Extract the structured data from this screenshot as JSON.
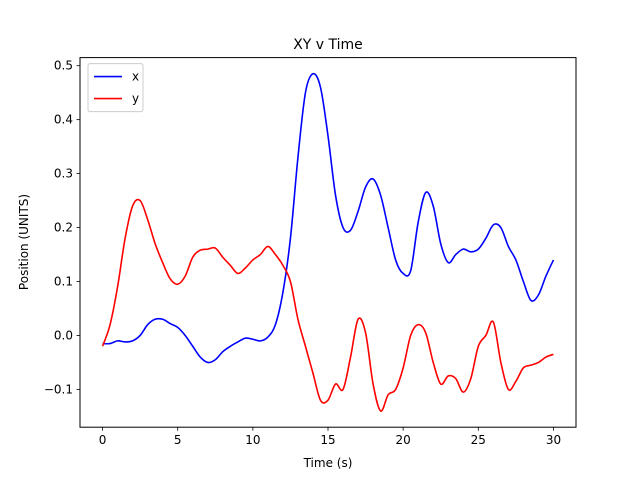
{
  "chart_data": {
    "type": "line",
    "title": "XY v Time",
    "xlabel": "Time (s)",
    "ylabel": "Position (UNITS)",
    "xlim": [
      -1.5,
      31.5
    ],
    "ylim": [
      -0.17,
      0.515
    ],
    "xticks": [
      0,
      5,
      10,
      15,
      20,
      25,
      30
    ],
    "xtick_labels": [
      "0",
      "5",
      "10",
      "15",
      "20",
      "25",
      "30"
    ],
    "yticks": [
      -0.1,
      0.0,
      0.1,
      0.2,
      0.3,
      0.4,
      0.5
    ],
    "ytick_labels": [
      "−0.1",
      "0.0",
      "0.1",
      "0.2",
      "0.3",
      "0.4",
      "0.5"
    ],
    "grid": false,
    "legend_position": "top-left",
    "series": [
      {
        "name": "x",
        "color": "#0000ff",
        "x": [
          0,
          0.5,
          1,
          1.5,
          2,
          2.5,
          3,
          3.5,
          4,
          4.5,
          5,
          5.5,
          6,
          6.5,
          7,
          7.5,
          8,
          8.5,
          9,
          9.5,
          10,
          10.5,
          11,
          11.5,
          12,
          12.5,
          13,
          13.5,
          14,
          14.5,
          15,
          15.5,
          16,
          16.5,
          17,
          17.5,
          18,
          18.5,
          19,
          19.5,
          20,
          20.5,
          21,
          21.5,
          22,
          22.5,
          23,
          23.5,
          24,
          24.5,
          25,
          25.5,
          26,
          26.5,
          27,
          27.5,
          28,
          28.5,
          29,
          29.5,
          30
        ],
        "values": [
          -0.015,
          -0.015,
          -0.01,
          -0.012,
          -0.01,
          0.0,
          0.02,
          0.03,
          0.03,
          0.022,
          0.015,
          0.0,
          -0.02,
          -0.04,
          -0.05,
          -0.045,
          -0.03,
          -0.02,
          -0.012,
          -0.005,
          -0.007,
          -0.01,
          -0.003,
          0.02,
          0.08,
          0.18,
          0.33,
          0.45,
          0.485,
          0.46,
          0.37,
          0.26,
          0.2,
          0.195,
          0.23,
          0.275,
          0.29,
          0.26,
          0.2,
          0.14,
          0.115,
          0.12,
          0.21,
          0.265,
          0.24,
          0.17,
          0.135,
          0.15,
          0.16,
          0.155,
          0.16,
          0.18,
          0.205,
          0.2,
          0.165,
          0.14,
          0.1,
          0.065,
          0.075,
          0.11,
          0.14
        ]
      },
      {
        "name": "y",
        "color": "#ff0000",
        "x": [
          0,
          0.5,
          1,
          1.5,
          2,
          2.5,
          3,
          3.5,
          4,
          4.5,
          5,
          5.5,
          6,
          6.5,
          7,
          7.5,
          8,
          8.5,
          9,
          9.5,
          10,
          10.5,
          11,
          11.5,
          12,
          12.5,
          13,
          13.5,
          14,
          14.5,
          15,
          15.5,
          16,
          16.5,
          17,
          17.5,
          18,
          18.5,
          19,
          19.5,
          20,
          20.5,
          21,
          21.5,
          22,
          22.5,
          23,
          23.5,
          24,
          24.5,
          25,
          25.5,
          26,
          26.5,
          27,
          27.5,
          28,
          28.5,
          29,
          29.5,
          30
        ],
        "values": [
          -0.02,
          0.02,
          0.09,
          0.18,
          0.24,
          0.25,
          0.215,
          0.17,
          0.135,
          0.105,
          0.095,
          0.11,
          0.145,
          0.158,
          0.16,
          0.162,
          0.145,
          0.13,
          0.115,
          0.125,
          0.14,
          0.15,
          0.165,
          0.15,
          0.13,
          0.1,
          0.03,
          -0.02,
          -0.07,
          -0.12,
          -0.12,
          -0.09,
          -0.1,
          -0.04,
          0.03,
          0.005,
          -0.09,
          -0.14,
          -0.11,
          -0.1,
          -0.06,
          0.0,
          0.02,
          0.005,
          -0.05,
          -0.09,
          -0.075,
          -0.08,
          -0.105,
          -0.08,
          -0.02,
          0.0,
          0.025,
          -0.05,
          -0.1,
          -0.085,
          -0.06,
          -0.055,
          -0.05,
          -0.04,
          -0.035
        ]
      }
    ]
  }
}
